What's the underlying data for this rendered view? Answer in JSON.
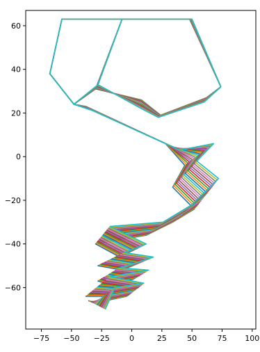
{
  "chart_data": {
    "type": "line",
    "title": "",
    "xlabel": "",
    "ylabel": "",
    "xlim": [
      -88,
      103
    ],
    "ylim": [
      -79,
      67
    ],
    "grid": false,
    "x_ticks": [
      -75,
      -50,
      -25,
      0,
      25,
      50,
      75,
      100
    ],
    "y_ticks": [
      -60,
      -40,
      -20,
      0,
      20,
      40,
      60
    ],
    "x_tick_labels": [
      "−75",
      "−50",
      "−25",
      "0",
      "25",
      "50",
      "75",
      "100"
    ],
    "y_tick_labels": [
      "−60",
      "−40",
      "−20",
      "0",
      "20",
      "40",
      "60"
    ],
    "colors": [
      "#1f77b4",
      "#ff7f0e",
      "#2ca02c",
      "#d62728",
      "#9467bd",
      "#8c564b",
      "#e377c2",
      "#7f7f7f",
      "#bcbd22",
      "#17becf"
    ],
    "num_series": 20,
    "frames": {
      "start": [
        [
          -58,
          63
        ],
        [
          -8,
          63
        ],
        [
          48,
          63
        ],
        [
          74,
          32
        ],
        [
          62,
          27
        ],
        [
          24,
          19
        ],
        [
          8,
          26
        ],
        [
          -30,
          31
        ],
        [
          -48,
          24
        ],
        [
          -68,
          38
        ],
        [
          -58,
          63
        ],
        [
          -8,
          63
        ],
        [
          -30,
          31
        ],
        [
          -48,
          24
        ],
        [
          -38,
          23
        ],
        [
          28,
          6
        ],
        [
          44,
          -4
        ],
        [
          34,
          -14
        ],
        [
          52,
          -24
        ],
        [
          34,
          -30
        ],
        [
          12,
          -36
        ],
        [
          -30,
          -40
        ],
        [
          -10,
          -46
        ],
        [
          -28,
          -50
        ],
        [
          -8,
          -52
        ],
        [
          -28,
          -57
        ],
        [
          -10,
          -60
        ],
        [
          -38,
          -64
        ],
        [
          -4,
          -64
        ],
        [
          -30,
          -67
        ],
        [
          -36,
          -66
        ]
      ],
      "end": [
        [
          -58,
          63
        ],
        [
          -8,
          63
        ],
        [
          50,
          63
        ],
        [
          74,
          32
        ],
        [
          60,
          25
        ],
        [
          22,
          18
        ],
        [
          8,
          22
        ],
        [
          -28,
          33
        ],
        [
          -48,
          24
        ],
        [
          -68,
          38
        ],
        [
          -58,
          63
        ],
        [
          -8,
          63
        ],
        [
          -28,
          33
        ],
        [
          -48,
          24
        ],
        [
          -32,
          21
        ],
        [
          40,
          3
        ],
        [
          68,
          6
        ],
        [
          54,
          -2
        ],
        [
          72,
          -10
        ],
        [
          50,
          -22
        ],
        [
          26,
          -30
        ],
        [
          -18,
          -32
        ],
        [
          12,
          -40
        ],
        [
          -6,
          -44
        ],
        [
          18,
          -46
        ],
        [
          -10,
          -51
        ],
        [
          14,
          -52
        ],
        [
          -18,
          -55
        ],
        [
          10,
          -58
        ],
        [
          -14,
          -60
        ],
        [
          -22,
          -70
        ]
      ]
    }
  }
}
